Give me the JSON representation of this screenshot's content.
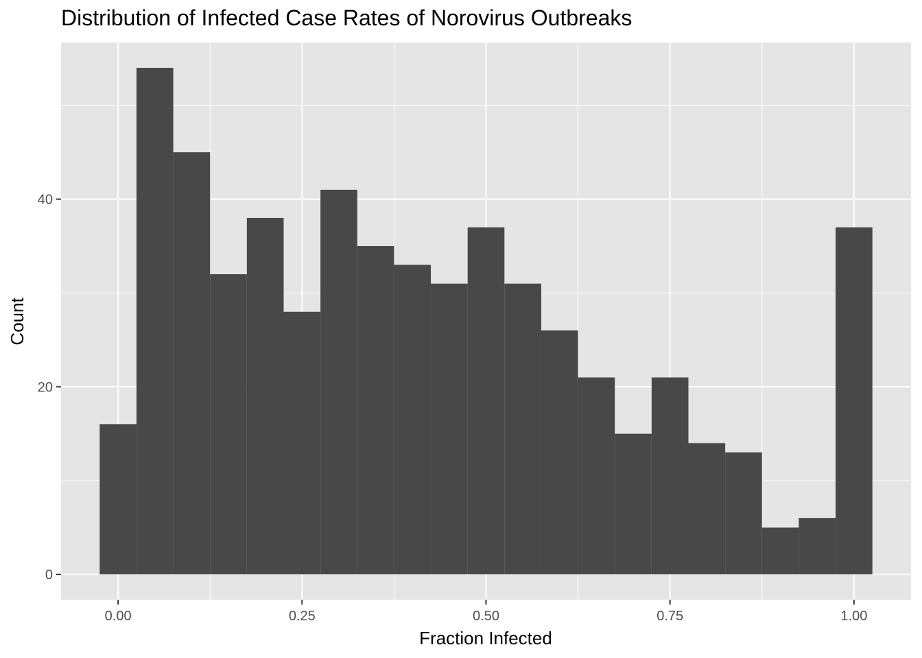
{
  "chart_data": {
    "type": "bar",
    "subtype": "histogram",
    "title": "Distribution of Infected Case Rates of Norovirus Outbreaks",
    "xlabel": "Fraction Infected",
    "ylabel": "Count",
    "bin_width": 0.05,
    "bins": [
      {
        "x0": -0.025,
        "x1": 0.025,
        "count": 16
      },
      {
        "x0": 0.025,
        "x1": 0.075,
        "count": 54
      },
      {
        "x0": 0.075,
        "x1": 0.125,
        "count": 45
      },
      {
        "x0": 0.125,
        "x1": 0.175,
        "count": 32
      },
      {
        "x0": 0.175,
        "x1": 0.225,
        "count": 38
      },
      {
        "x0": 0.225,
        "x1": 0.275,
        "count": 28
      },
      {
        "x0": 0.275,
        "x1": 0.325,
        "count": 41
      },
      {
        "x0": 0.325,
        "x1": 0.375,
        "count": 35
      },
      {
        "x0": 0.375,
        "x1": 0.425,
        "count": 33
      },
      {
        "x0": 0.425,
        "x1": 0.475,
        "count": 31
      },
      {
        "x0": 0.475,
        "x1": 0.525,
        "count": 37
      },
      {
        "x0": 0.525,
        "x1": 0.575,
        "count": 31
      },
      {
        "x0": 0.575,
        "x1": 0.625,
        "count": 26
      },
      {
        "x0": 0.625,
        "x1": 0.675,
        "count": 21
      },
      {
        "x0": 0.675,
        "x1": 0.725,
        "count": 15
      },
      {
        "x0": 0.725,
        "x1": 0.775,
        "count": 21
      },
      {
        "x0": 0.775,
        "x1": 0.825,
        "count": 14
      },
      {
        "x0": 0.825,
        "x1": 0.875,
        "count": 13
      },
      {
        "x0": 0.875,
        "x1": 0.925,
        "count": 5
      },
      {
        "x0": 0.925,
        "x1": 0.975,
        "count": 6
      },
      {
        "x0": 0.975,
        "x1": 1.025,
        "count": 37
      }
    ],
    "xlim": [
      -0.0775,
      1.0775
    ],
    "ylim": [
      -2.7,
      56.7
    ],
    "x_ticks": [
      0,
      0.25,
      0.5,
      0.75,
      1
    ],
    "x_tick_labels": [
      "0.00",
      "0.25",
      "0.50",
      "0.75",
      "1.00"
    ],
    "y_ticks": [
      0,
      20,
      40
    ],
    "y_tick_labels": [
      "0",
      "20",
      "40"
    ],
    "grid": true,
    "legend": "none",
    "colors": {
      "panel_background": "#e5e5e5",
      "gridline": "#ffffff",
      "bar_fill": "#484848",
      "tick_text": "#4d4d4d",
      "axis_title": "#000000"
    }
  }
}
